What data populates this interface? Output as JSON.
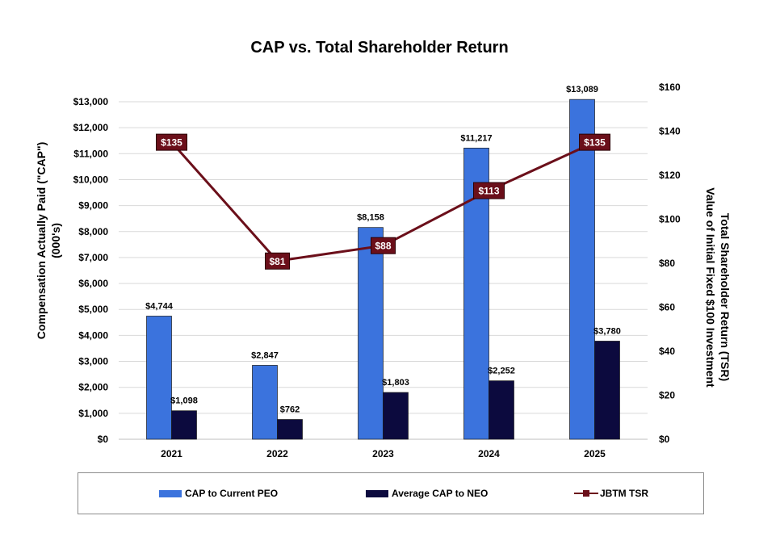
{
  "chart_data": {
    "type": "bar+line",
    "title": "CAP vs. Total Shareholder Return",
    "categories": [
      "2021",
      "2022",
      "2023",
      "2024",
      "2025"
    ],
    "series": [
      {
        "name": "CAP to Current PEO",
        "type": "bar",
        "axis": "left",
        "color": "#3b73dd",
        "values": [
          4744,
          2847,
          8158,
          11217,
          13089
        ],
        "labels": [
          "$4,744",
          "$2,847",
          "$8,158",
          "$11,217",
          "$13,089"
        ]
      },
      {
        "name": "Average CAP to NEO",
        "type": "bar",
        "axis": "left",
        "color": "#0c0a3e",
        "values": [
          1098,
          762,
          1803,
          2252,
          3780
        ],
        "labels": [
          "$1,098",
          "$762",
          "$1,803",
          "$2,252",
          "$3,780"
        ]
      },
      {
        "name": "JBTM TSR",
        "type": "line",
        "axis": "right",
        "color": "#6b0f1a",
        "values": [
          135,
          81,
          88,
          113,
          135
        ],
        "labels": [
          "$135",
          "$81",
          "$88",
          "$113",
          "$135"
        ]
      }
    ],
    "ylabel": "Compensation Actually Paid (\"CAP\")",
    "ylabel_line2": "(000's)",
    "y2label": "Total Shareholder Return (TSR)",
    "y2label_line2": "Value of Initial Fixed $100 Investment",
    "ylim": [
      0,
      13000
    ],
    "yticks": [
      0,
      1000,
      2000,
      3000,
      4000,
      5000,
      6000,
      7000,
      8000,
      9000,
      10000,
      11000,
      12000,
      13000
    ],
    "ytick_labels": [
      "$0",
      "$1,000",
      "$2,000",
      "$3,000",
      "$4,000",
      "$5,000",
      "$6,000",
      "$7,000",
      "$8,000",
      "$9,000",
      "$10,000",
      "$11,000",
      "$12,000",
      "$13,000"
    ],
    "y2lim": [
      0,
      160
    ],
    "y2ticks": [
      0,
      20,
      40,
      60,
      80,
      100,
      120,
      140,
      160
    ],
    "y2tick_labels": [
      "$0",
      "$20",
      "$40",
      "$60",
      "$80",
      "$100",
      "$120",
      "$140",
      "$160"
    ],
    "grid": true,
    "legend": "bottom"
  },
  "colors": {
    "grid": "#d9d9d9",
    "axis": "#bfbfbf"
  }
}
